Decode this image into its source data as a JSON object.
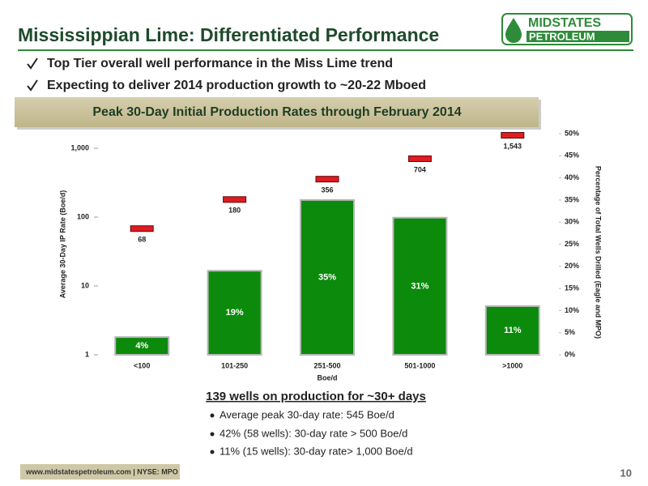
{
  "header": {
    "title": "Mississippian Lime: Differentiated Performance",
    "logo_top": "MIDSTATES",
    "logo_bottom": "PETROLEUM"
  },
  "bullets": [
    "Top Tier overall well performance in the Miss Lime trend",
    "Expecting to deliver 2014 production growth to ~20-22 Mboed"
  ],
  "chart_data": {
    "type": "bar-marker",
    "title": "Peak 30-Day Initial Production Rates through  February 2014",
    "categories": [
      "<100",
      "101-250",
      "251-500",
      "501-1000",
      ">1000"
    ],
    "x_label": "Boe/d",
    "y_label": "Average 30-Day IP Rate (Boe/d)",
    "y2_label": "Percentage of Total Wells Drilled (Eagle and MPO)",
    "series": [
      {
        "type": "bar",
        "axis": "y2",
        "color": "#0b8a0b",
        "values": [
          4,
          19,
          35,
          31,
          11
        ],
        "value_labels": [
          "4%",
          "19%",
          "35%",
          "31%",
          "11%"
        ]
      },
      {
        "type": "marker",
        "axis": "y",
        "color": "#e01b22",
        "values": [
          68,
          180,
          356,
          704,
          1543
        ],
        "value_labels": [
          "68",
          "180",
          "356",
          "704",
          "1,543"
        ]
      }
    ],
    "ylog": true,
    "ylim": [
      1,
      1630
    ],
    "yticks": [
      1,
      10,
      100,
      {
        "value": 1000,
        "label": "1,000"
      }
    ],
    "y2lim": [
      0,
      50
    ],
    "y2ticks": [
      {
        "value": 0,
        "label": "0%"
      },
      {
        "value": 5,
        "label": "5%"
      },
      {
        "value": 10,
        "label": "10%"
      },
      {
        "value": 15,
        "label": "15%"
      },
      {
        "value": 20,
        "label": "20%"
      },
      {
        "value": 25,
        "label": "25%"
      },
      {
        "value": 30,
        "label": "30%"
      },
      {
        "value": 35,
        "label": "35%"
      },
      {
        "value": 40,
        "label": "40%"
      },
      {
        "value": 45,
        "label": "45%"
      },
      {
        "value": 50,
        "label": "50%"
      }
    ]
  },
  "notes": {
    "title": "139 wells on production for ~30+ days",
    "items": [
      "Average peak 30-day rate: 545 Boe/d",
      "42% (58 wells): 30-day rate > 500 Boe/d",
      "11% (15 wells): 30-day rate> 1,000 Boe/d"
    ]
  },
  "footer": {
    "text": "www.midstatespetroleum.com | NYSE: MPO",
    "page": "10"
  }
}
